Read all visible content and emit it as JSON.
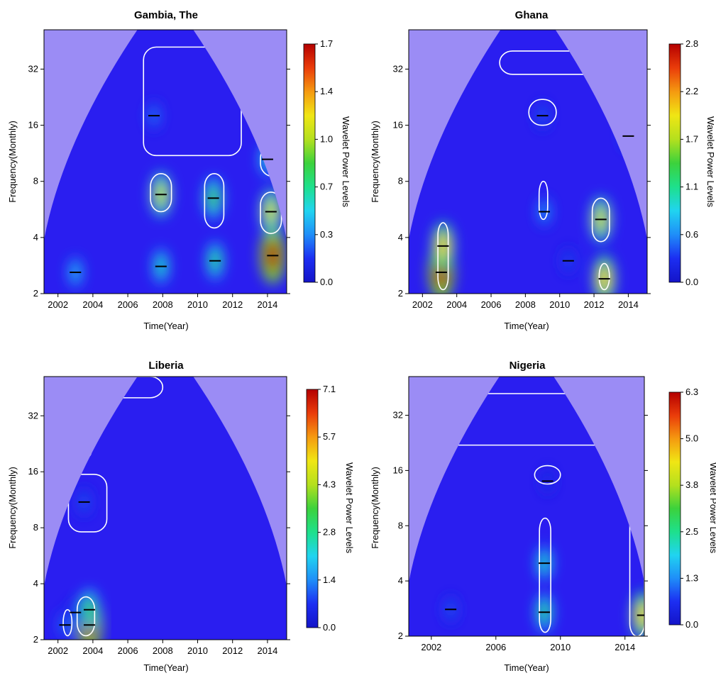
{
  "colors": {
    "coi_shade": "#9b8cf5",
    "background_power": "#2a1ef0",
    "contour": "#ffffff",
    "ridge": "#000000",
    "colormap": [
      "#1414c8",
      "#1c2ef2",
      "#1f8ef8",
      "#20d4f0",
      "#1ee08c",
      "#3cd23c",
      "#b4e01e",
      "#f0e614",
      "#f59a10",
      "#ea3c0a",
      "#b40000"
    ]
  },
  "chart_data": [
    {
      "type": "heatmap",
      "subtype": "wavelet-power-spectrum",
      "title": "Gambia, The",
      "xlabel": "Time(Year)",
      "ylabel": "Frequency(Monthly)",
      "colorbar_label": "Wavelet Power Levels",
      "x_ticks": [
        "2002",
        "2004",
        "2006",
        "2008",
        "2010",
        "2012",
        "2014"
      ],
      "y_ticks": [
        "2",
        "4",
        "8",
        "16",
        "32"
      ],
      "y_scale": "log2",
      "xlim": [
        2001.2,
        2015.1
      ],
      "ylim": [
        2,
        52
      ],
      "colorbar_ticks": [
        "0.0",
        "0.3",
        "0.7",
        "1.0",
        "1.4",
        "1.7"
      ],
      "colorbar_range": [
        0,
        1.7
      ],
      "hotspots": [
        {
          "x": 2007.9,
          "y": 6.8,
          "power": 1.05
        },
        {
          "x": 2010.9,
          "y": 6.5,
          "power": 0.85
        },
        {
          "x": 2011.0,
          "y": 3.0,
          "power": 0.7
        },
        {
          "x": 2014.3,
          "y": 3.2,
          "power": 1.7
        },
        {
          "x": 2014.2,
          "y": 5.5,
          "power": 1.1
        },
        {
          "x": 2014.0,
          "y": 10.5,
          "power": 0.55
        },
        {
          "x": 2007.5,
          "y": 18,
          "power": 0.3
        },
        {
          "x": 2003.0,
          "y": 2.6,
          "power": 0.45
        },
        {
          "x": 2007.9,
          "y": 2.8,
          "power": 0.6
        }
      ],
      "significance_regions": [
        {
          "x": [
            2006.9,
            2012.5
          ],
          "y": [
            11,
            42
          ]
        },
        {
          "x": [
            2007.3,
            2008.5
          ],
          "y": [
            5.5,
            8.8
          ]
        },
        {
          "x": [
            2010.4,
            2011.5
          ],
          "y": [
            4.5,
            8.8
          ]
        },
        {
          "x": [
            2013.6,
            2015.1
          ],
          "y": [
            8.5,
            12.5
          ]
        },
        {
          "x": [
            2013.6,
            2014.8
          ],
          "y": [
            4.2,
            7.0
          ]
        }
      ]
    },
    {
      "type": "heatmap",
      "subtype": "wavelet-power-spectrum",
      "title": "Ghana",
      "xlabel": "Time(Year)",
      "ylabel": "Frequency(Monthly)",
      "colorbar_label": "Wavelet Power Levels",
      "x_ticks": [
        "2002",
        "2004",
        "2006",
        "2008",
        "2010",
        "2012",
        "2014"
      ],
      "y_ticks": [
        "2",
        "4",
        "8",
        "16",
        "32"
      ],
      "y_scale": "log2",
      "xlim": [
        2001.2,
        2015.1
      ],
      "ylim": [
        2,
        52
      ],
      "colorbar_ticks": [
        "0.0",
        "0.6",
        "1.1",
        "1.7",
        "2.2",
        "2.8"
      ],
      "colorbar_range": [
        0,
        2.8
      ],
      "hotspots": [
        {
          "x": 2003.1,
          "y": 2.6,
          "power": 2.8
        },
        {
          "x": 2003.2,
          "y": 3.6,
          "power": 2.0
        },
        {
          "x": 2012.4,
          "y": 5.0,
          "power": 1.8
        },
        {
          "x": 2012.6,
          "y": 2.4,
          "power": 2.0
        },
        {
          "x": 2009.1,
          "y": 5.5,
          "power": 0.6
        },
        {
          "x": 2014.0,
          "y": 14,
          "power": 0.45
        },
        {
          "x": 2009.0,
          "y": 18,
          "power": 0.4
        },
        {
          "x": 2010.5,
          "y": 3.0,
          "power": 0.35
        }
      ],
      "significance_regions": [
        {
          "x": [
            2002.9,
            2003.5
          ],
          "y": [
            2.1,
            4.8
          ]
        },
        {
          "x": [
            2011.9,
            2012.9
          ],
          "y": [
            3.8,
            6.5
          ]
        },
        {
          "x": [
            2012.3,
            2012.9
          ],
          "y": [
            2.1,
            2.9
          ]
        },
        {
          "x": [
            2008.8,
            2009.3
          ],
          "y": [
            5.0,
            8.0
          ]
        },
        {
          "x": [
            2008.2,
            2009.8
          ],
          "y": [
            16,
            22
          ]
        },
        {
          "x": [
            2013.5,
            2015.1
          ],
          "y": [
            12.5,
            17
          ]
        },
        {
          "x": [
            2006.5,
            2015.1
          ],
          "y": [
            30,
            40
          ]
        }
      ]
    },
    {
      "type": "heatmap",
      "subtype": "wavelet-power-spectrum",
      "title": "Liberia",
      "xlabel": "Time(Year)",
      "ylabel": "Frequency(Monthly)",
      "colorbar_label": "Wavelet Power Levels",
      "x_ticks": [
        "2002",
        "2004",
        "2006",
        "2008",
        "2010",
        "2012",
        "2014"
      ],
      "y_ticks": [
        "2",
        "4",
        "8",
        "16",
        "32"
      ],
      "y_scale": "log2",
      "xlim": [
        2001.2,
        2015.1
      ],
      "ylim": [
        2,
        52
      ],
      "colorbar_ticks": [
        "0.0",
        "1.4",
        "2.8",
        "4.3",
        "5.7",
        "7.1"
      ],
      "colorbar_range": [
        0,
        7.1
      ],
      "hotspots": [
        {
          "x": 2003.8,
          "y": 2.4,
          "power": 7.1
        },
        {
          "x": 2003.8,
          "y": 2.9,
          "power": 3.5
        },
        {
          "x": 2002.4,
          "y": 2.4,
          "power": 1.2
        },
        {
          "x": 2003.5,
          "y": 11,
          "power": 1.0
        },
        {
          "x": 2003.0,
          "y": 2.8,
          "power": 0.9
        }
      ],
      "significance_regions": [
        {
          "x": [
            2003.1,
            2004.1
          ],
          "y": [
            2.1,
            3.4
          ]
        },
        {
          "x": [
            2002.3,
            2002.8
          ],
          "y": [
            2.1,
            2.9
          ]
        },
        {
          "x": [
            2002.6,
            2004.8
          ],
          "y": [
            7.6,
            15.5
          ]
        },
        {
          "x": [
            2003.2,
            2003.9
          ],
          "y": [
            19,
            22
          ]
        },
        {
          "x": [
            2001.2,
            2008.0
          ],
          "y": [
            40,
            52
          ]
        }
      ]
    },
    {
      "type": "heatmap",
      "subtype": "wavelet-power-spectrum",
      "title": "Nigeria",
      "xlabel": "Time(Year)",
      "ylabel": "Frequency(Monthly)",
      "colorbar_label": "Wavelet Power Levels",
      "x_ticks": [
        "2002",
        "2006",
        "2010",
        "2014"
      ],
      "y_ticks": [
        "2",
        "4",
        "8",
        "16",
        "32"
      ],
      "y_scale": "log2",
      "xlim": [
        2000.6,
        2015.2
      ],
      "ylim": [
        2,
        52
      ],
      "colorbar_ticks": [
        "0.0",
        "1.3",
        "2.5",
        "3.8",
        "5.0",
        "6.3"
      ],
      "colorbar_range": [
        0,
        6.3
      ],
      "hotspots": [
        {
          "x": 2009.0,
          "y": 5.0,
          "power": 2.2
        },
        {
          "x": 2009.0,
          "y": 2.7,
          "power": 2.6
        },
        {
          "x": 2015.1,
          "y": 2.6,
          "power": 4.5
        },
        {
          "x": 2003.2,
          "y": 2.8,
          "power": 0.9
        },
        {
          "x": 2009.2,
          "y": 14,
          "power": 0.6
        }
      ],
      "significance_regions": [
        {
          "x": [
            2008.7,
            2009.4
          ],
          "y": [
            2.1,
            8.8
          ]
        },
        {
          "x": [
            2008.4,
            2010.0
          ],
          "y": [
            13.5,
            17
          ]
        },
        {
          "x": [
            2001.0,
            2015.2
          ],
          "y": [
            22,
            42
          ]
        },
        {
          "x": [
            2014.3,
            2015.2
          ],
          "y": [
            2.0,
            32
          ]
        }
      ]
    }
  ]
}
